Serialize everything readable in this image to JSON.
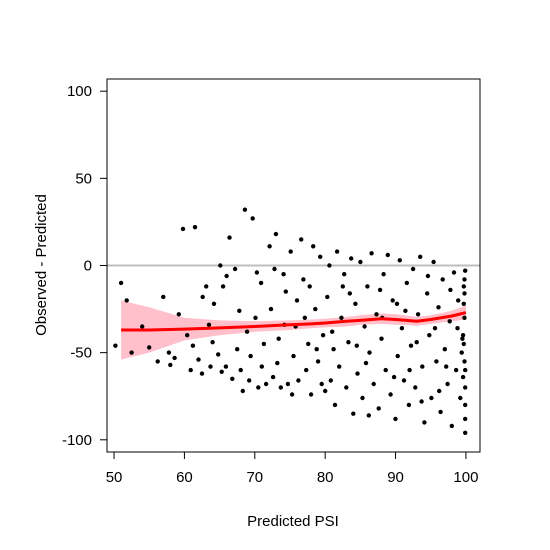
{
  "chart_data": {
    "type": "scatter",
    "title": "",
    "xlabel": "Predicted PSI",
    "ylabel": "Observed - Predicted",
    "xlim": [
      49,
      102
    ],
    "ylim": [
      -107,
      107
    ],
    "xticks": [
      50,
      60,
      70,
      80,
      90,
      100
    ],
    "yticks": [
      -100,
      -50,
      0,
      50,
      100
    ],
    "grid": false,
    "legend": "none",
    "reference_line": {
      "y": 0,
      "color": "#bebebe"
    },
    "point_color": "#000000",
    "smooth_color": "#ff0000",
    "band_color": "#ffc0cb",
    "smooth": {
      "x": [
        51,
        55,
        60,
        65,
        70,
        75,
        78,
        80,
        83,
        85,
        88,
        90,
        93,
        95,
        98,
        100
      ],
      "y": [
        -37,
        -37,
        -36.5,
        -35.8,
        -35,
        -34,
        -33.5,
        -33,
        -32,
        -31.5,
        -30.5,
        -31,
        -32,
        -31,
        -29,
        -27
      ],
      "lower": [
        -54,
        -50,
        -43,
        -40,
        -38,
        -37,
        -36,
        -35.5,
        -35,
        -34,
        -33.5,
        -34,
        -34.5,
        -33.5,
        -32,
        -31
      ],
      "upper": [
        -20,
        -24,
        -30,
        -31.5,
        -32,
        -31.5,
        -31,
        -30.5,
        -29.5,
        -28.5,
        -27.5,
        -28,
        -29.5,
        -28.5,
        -26,
        -23
      ]
    },
    "points": [
      [
        50.2,
        -46
      ],
      [
        51,
        -10
      ],
      [
        51.8,
        -20
      ],
      [
        52.5,
        -50
      ],
      [
        54,
        -35
      ],
      [
        55,
        -47
      ],
      [
        56.2,
        -55
      ],
      [
        57,
        -18
      ],
      [
        57.8,
        -50
      ],
      [
        58,
        -57
      ],
      [
        58.6,
        -53
      ],
      [
        59.2,
        -28
      ],
      [
        59.8,
        21
      ],
      [
        60.4,
        -40
      ],
      [
        60.9,
        -60
      ],
      [
        61.5,
        22
      ],
      [
        62,
        -54
      ],
      [
        62.5,
        -62
      ],
      [
        63.1,
        -12
      ],
      [
        63.7,
        -58
      ],
      [
        64.2,
        -22
      ],
      [
        64.8,
        -51
      ],
      [
        65.1,
        0
      ],
      [
        65.3,
        -61
      ],
      [
        65.9,
        -58
      ],
      [
        66.4,
        16
      ],
      [
        66.8,
        -65
      ],
      [
        67.2,
        -2
      ],
      [
        67.5,
        -48
      ],
      [
        68.3,
        -72
      ],
      [
        68.6,
        32
      ],
      [
        68.9,
        -38
      ],
      [
        69.2,
        -66
      ],
      [
        69.7,
        27
      ],
      [
        70.1,
        -30
      ],
      [
        70.5,
        -70
      ],
      [
        70.9,
        -10
      ],
      [
        71.3,
        -45
      ],
      [
        71.6,
        -68
      ],
      [
        72.1,
        11
      ],
      [
        72.3,
        -25
      ],
      [
        72.6,
        -64
      ],
      [
        73,
        18
      ],
      [
        73.4,
        -42
      ],
      [
        73.7,
        -70
      ],
      [
        74.1,
        -5
      ],
      [
        74.4,
        -15
      ],
      [
        74.7,
        -68
      ],
      [
        75.1,
        8
      ],
      [
        75.5,
        -52
      ],
      [
        75.8,
        -35
      ],
      [
        76.2,
        -66
      ],
      [
        76.6,
        15
      ],
      [
        76.9,
        -8
      ],
      [
        77.3,
        -60
      ],
      [
        77.6,
        -45
      ],
      [
        78,
        -74
      ],
      [
        78.3,
        11
      ],
      [
        78.6,
        -25
      ],
      [
        79,
        -55
      ],
      [
        79.3,
        5
      ],
      [
        79.7,
        -40
      ],
      [
        80,
        -72
      ],
      [
        80.3,
        -18
      ],
      [
        80.6,
        0
      ],
      [
        81,
        -38
      ],
      [
        81.4,
        -80
      ],
      [
        81.7,
        8
      ],
      [
        82,
        -58
      ],
      [
        82.3,
        -30
      ],
      [
        82.7,
        -5
      ],
      [
        83,
        -70
      ],
      [
        83.3,
        -44
      ],
      [
        83.7,
        4
      ],
      [
        84,
        -85
      ],
      [
        84.3,
        -22
      ],
      [
        84.6,
        -62
      ],
      [
        85,
        2
      ],
      [
        85.3,
        -76
      ],
      [
        85.6,
        -35
      ],
      [
        86,
        -12
      ],
      [
        86.3,
        -50
      ],
      [
        86.6,
        7
      ],
      [
        86.9,
        -68
      ],
      [
        87.3,
        -28
      ],
      [
        87.6,
        -82
      ],
      [
        88,
        -42
      ],
      [
        88.3,
        -5
      ],
      [
        88.6,
        -60
      ],
      [
        88.9,
        6
      ],
      [
        89.3,
        -74
      ],
      [
        89.6,
        -20
      ],
      [
        90,
        -88
      ],
      [
        90.3,
        -52
      ],
      [
        90.6,
        3
      ],
      [
        90.9,
        -36
      ],
      [
        91.2,
        -66
      ],
      [
        91.6,
        -10
      ],
      [
        91.9,
        -80
      ],
      [
        92.2,
        -46
      ],
      [
        92.5,
        -2
      ],
      [
        92.8,
        -70
      ],
      [
        93.2,
        -28
      ],
      [
        93.5,
        5
      ],
      [
        93.8,
        -58
      ],
      [
        94.1,
        -90
      ],
      [
        94.5,
        -16
      ],
      [
        94.8,
        -40
      ],
      [
        95.1,
        -76
      ],
      [
        95.4,
        2
      ],
      [
        95.8,
        -55
      ],
      [
        96.1,
        -24
      ],
      [
        96.4,
        -84
      ],
      [
        96.7,
        -8
      ],
      [
        97,
        -48
      ],
      [
        97.4,
        -68
      ],
      [
        97.7,
        -32
      ],
      [
        98,
        -92
      ],
      [
        98.3,
        -4
      ],
      [
        98.6,
        -60
      ],
      [
        98.9,
        -20
      ],
      [
        99.2,
        -76
      ],
      [
        99.5,
        -42
      ],
      [
        99.7,
        -12
      ],
      [
        99.9,
        -88
      ],
      [
        99.9,
        -96
      ],
      [
        99.8,
        -55
      ],
      [
        99.8,
        -30
      ],
      [
        99.9,
        -3
      ],
      [
        99.9,
        -70
      ],
      [
        62.6,
        -18
      ],
      [
        64,
        -44
      ],
      [
        66,
        -6
      ],
      [
        67.8,
        -26
      ],
      [
        69.4,
        -52
      ],
      [
        71,
        -58
      ],
      [
        72.8,
        -2
      ],
      [
        74.2,
        -34
      ],
      [
        76,
        -20
      ],
      [
        77.8,
        -12
      ],
      [
        79.5,
        -68
      ],
      [
        81.2,
        -48
      ],
      [
        83.5,
        -16
      ],
      [
        85.8,
        -56
      ],
      [
        87.8,
        -14
      ],
      [
        89.8,
        -64
      ],
      [
        91.4,
        -26
      ],
      [
        93,
        -44
      ],
      [
        94.6,
        -6
      ],
      [
        96.2,
        -72
      ],
      [
        97.8,
        -14
      ],
      [
        99.4,
        -50
      ],
      [
        61.2,
        -46
      ],
      [
        63.5,
        -34
      ],
      [
        65.5,
        -12
      ],
      [
        68,
        -60
      ],
      [
        70.3,
        -4
      ],
      [
        73.2,
        -56
      ],
      [
        75.3,
        -74
      ],
      [
        77.1,
        -30
      ],
      [
        78.8,
        -48
      ],
      [
        80.8,
        -66
      ],
      [
        82.5,
        -12
      ],
      [
        84.5,
        -46
      ],
      [
        86.2,
        -86
      ],
      [
        88.1,
        -30
      ],
      [
        90.2,
        -22
      ],
      [
        92,
        -60
      ],
      [
        93.7,
        -78
      ],
      [
        95.6,
        -36
      ],
      [
        97.2,
        -58
      ],
      [
        98.8,
        -36
      ],
      [
        99.6,
        -64
      ],
      [
        99.7,
        -22
      ],
      [
        99.8,
        -8
      ],
      [
        99.6,
        -40
      ],
      [
        99.9,
        -80
      ],
      [
        99.7,
        -45
      ],
      [
        99.8,
        -16
      ],
      [
        99.9,
        -60
      ]
    ]
  }
}
